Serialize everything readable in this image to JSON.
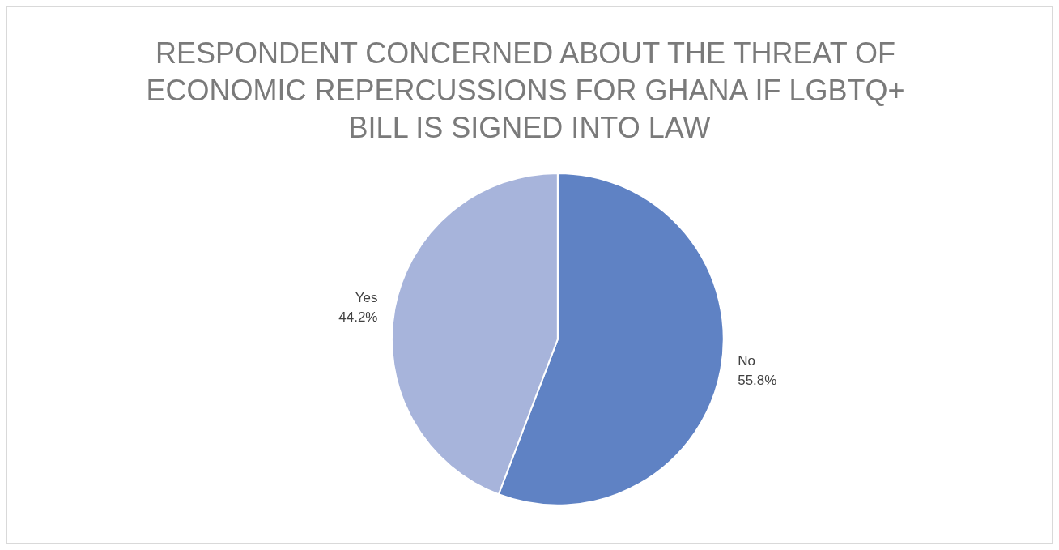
{
  "chart_data": {
    "type": "pie",
    "title": "RESPONDENT CONCERNED ABOUT THE THREAT OF ECONOMIC REPERCUSSIONS FOR GHANA IF LGBTQ+ BILL IS SIGNED INTO LAW",
    "categories": [
      "No",
      "Yes"
    ],
    "values": [
      55.8,
      44.2
    ],
    "colors": [
      "#5f82c4",
      "#a7b4db"
    ],
    "value_labels": [
      "55.8%",
      "44.2%"
    ],
    "legend": false
  }
}
